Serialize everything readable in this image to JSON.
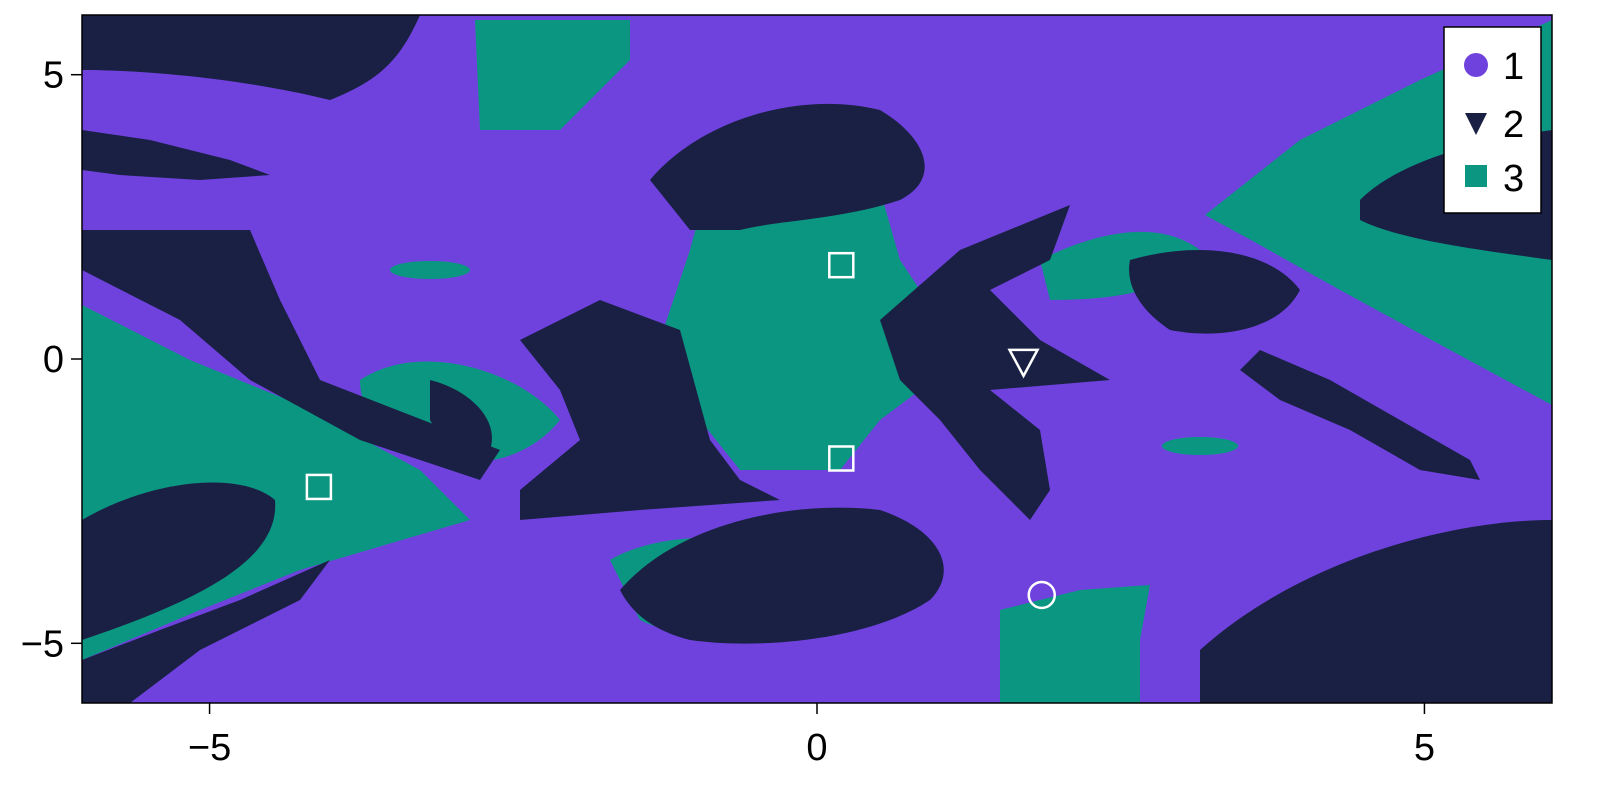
{
  "chart_data": {
    "type": "heatmap",
    "title": "",
    "xlabel": "",
    "ylabel": "",
    "xlim": [
      -6.05,
      6.05
    ],
    "ylim": [
      -6.05,
      6.05
    ],
    "x_ticks": [
      {
        "value": -5,
        "label": "−5"
      },
      {
        "value": 0,
        "label": "0"
      },
      {
        "value": 5,
        "label": "5"
      }
    ],
    "y_ticks": [
      {
        "value": 5,
        "label": "5"
      },
      {
        "value": 0,
        "label": "0"
      },
      {
        "value": -5,
        "label": "−5"
      }
    ],
    "grid": false,
    "legend_position": "top-right",
    "basin_colors": {
      "1": "#6f42de",
      "2": "#192044",
      "3": "#0b9682"
    },
    "legend": [
      {
        "label": "1",
        "marker": "circle",
        "color": "#6f42de"
      },
      {
        "label": "2",
        "marker": "triangle-down",
        "color": "#192044"
      },
      {
        "label": "3",
        "marker": "square",
        "color": "#0b9682"
      }
    ],
    "attractors": [
      {
        "basin": "3",
        "marker": "square",
        "x": 0.2,
        "y": 1.65
      },
      {
        "basin": "3",
        "marker": "square",
        "x": 0.2,
        "y": -1.75
      },
      {
        "basin": "3",
        "marker": "square",
        "x": -4.1,
        "y": -2.25
      },
      {
        "basin": "2",
        "marker": "triangle-down",
        "x": 1.7,
        "y": -0.05
      },
      {
        "basin": "1",
        "marker": "circle",
        "x": 1.85,
        "y": -4.15
      }
    ],
    "marker_stroke": "#ffffff"
  }
}
